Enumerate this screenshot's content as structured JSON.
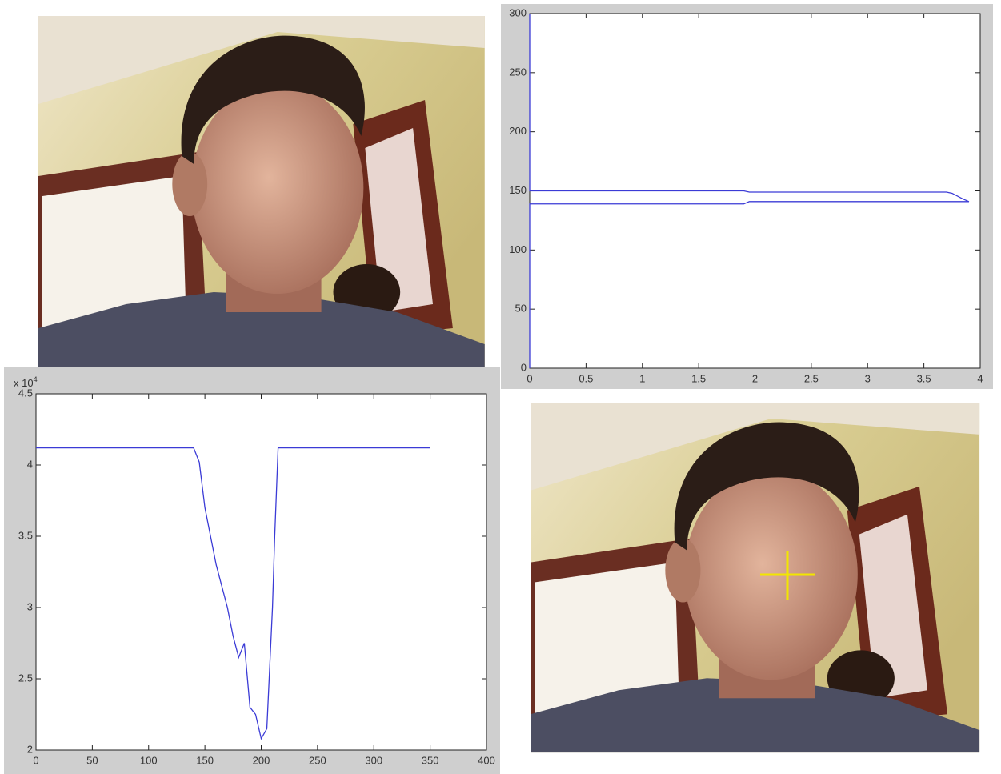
{
  "chart_data": [
    {
      "type": "line",
      "xlim": [
        0,
        4
      ],
      "xticks": [
        0,
        0.5,
        1,
        1.5,
        2,
        2.5,
        3,
        3.5,
        4
      ],
      "ylim": [
        0,
        300
      ],
      "yticks": [
        0,
        50,
        100,
        150,
        200,
        250,
        300
      ],
      "series": [
        {
          "color": "#3b3bd6",
          "x": [
            0,
            0,
            1.9,
            1.95,
            3.7,
            3.75,
            3.85,
            3.9,
            1.95,
            1.9,
            0,
            0
          ],
          "values": [
            300,
            150,
            150,
            149,
            149,
            148,
            143,
            141,
            141,
            139,
            139,
            0
          ]
        }
      ]
    },
    {
      "type": "line",
      "xlim": [
        0,
        400
      ],
      "xticks": [
        0,
        50,
        100,
        150,
        200,
        250,
        300,
        350,
        400
      ],
      "ylim": [
        20000,
        45000
      ],
      "yticks": [
        {
          "value": 20000,
          "label": "2"
        },
        {
          "value": 25000,
          "label": "2.5"
        },
        {
          "value": 30000,
          "label": "3"
        },
        {
          "value": 35000,
          "label": "3.5"
        },
        {
          "value": 40000,
          "label": "4"
        },
        {
          "value": 45000,
          "label": "4.5"
        }
      ],
      "y_exponent": {
        "base": "x 10",
        "power": "4"
      },
      "series": [
        {
          "color": "#3b3bd6",
          "x": [
            0,
            140,
            145,
            150,
            155,
            160,
            165,
            170,
            175,
            180,
            185,
            190,
            195,
            200,
            205,
            210,
            212,
            215,
            350
          ],
          "values": [
            41200,
            41200,
            40200,
            37000,
            35000,
            33000,
            31500,
            30000,
            28000,
            26500,
            27500,
            23000,
            22500,
            20800,
            21500,
            30000,
            35000,
            41200,
            41200
          ]
        }
      ]
    }
  ]
}
